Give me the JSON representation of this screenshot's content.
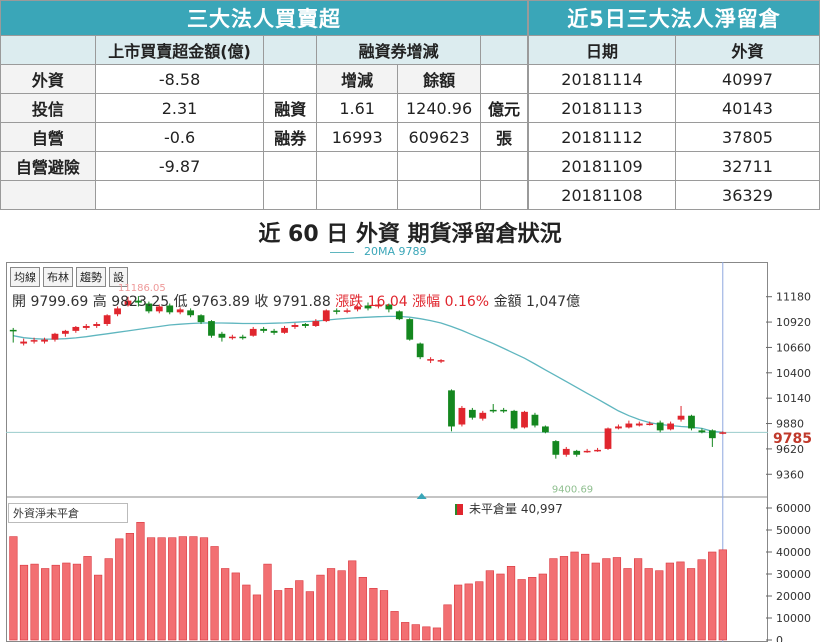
{
  "table1": {
    "title": "三大法人買賣超",
    "head": {
      "col1": "上市買賣超金額(億)",
      "col2": "融資券增減"
    },
    "subhead": {
      "a": "增減",
      "b": "餘額"
    },
    "rows": [
      {
        "label": "外資",
        "value": "-8.58",
        "m": "",
        "a": "",
        "b": "",
        "u": ""
      },
      {
        "label": "投信",
        "value": "2.31",
        "m": "融資",
        "a": "1.61",
        "b": "1240.96",
        "u": "億元"
      },
      {
        "label": "自營",
        "value": "-0.6",
        "m": "融券",
        "a": "16993",
        "b": "609623",
        "u": "張"
      },
      {
        "label": "自營避險",
        "value": "-9.87",
        "m": "",
        "a": "",
        "b": "",
        "u": ""
      }
    ]
  },
  "table2": {
    "title": "近5日三大法人淨留倉",
    "head": {
      "date": "日期",
      "foreign": "外資"
    },
    "rows": [
      {
        "date": "20181114",
        "value": "40997"
      },
      {
        "date": "20181113",
        "value": "40143"
      },
      {
        "date": "20181112",
        "value": "37805"
      },
      {
        "date": "20181109",
        "value": "32711"
      },
      {
        "date": "20181108",
        "value": "36329"
      }
    ]
  },
  "chart_title": "近 60 日 外資 期貨淨留倉狀況",
  "ma_legend": "20MA 9789",
  "buttons": [
    "均線",
    "布林",
    "趨勢",
    "設"
  ],
  "ohlc": {
    "open": "開 9799.69",
    "high": "高 9823.25",
    "low": "低 9763.89",
    "close": "收 9791.88",
    "change": "漲跌 16.04",
    "pct": "漲幅 0.16%",
    "amount": "金額 1,047億"
  },
  "price_tag": "9785",
  "colors": {
    "up": "#e0262e",
    "down": "#14871f",
    "ma": "#5fb6bf",
    "header": "#3aa6b8"
  },
  "chart_data": [
    {
      "type": "candlestick",
      "title": "",
      "y_ticks": [
        "11180",
        "10920",
        "10660",
        "10400",
        "10140",
        "9880",
        "9620",
        "9360"
      ],
      "ylim": [
        9250,
        11300
      ],
      "annotations": {
        "high_marker": "11186.05",
        "low_marker": "9400.69"
      },
      "candles": [
        [
          10840,
          10830,
          10860,
          10710
        ],
        [
          10700,
          10720,
          10750,
          10680
        ],
        [
          10730,
          10735,
          10760,
          10700
        ],
        [
          10720,
          10740,
          10760,
          10700
        ],
        [
          10740,
          10800,
          10810,
          10720
        ],
        [
          10800,
          10830,
          10840,
          10770
        ],
        [
          10830,
          10870,
          10880,
          10810
        ],
        [
          10860,
          10880,
          10900,
          10840
        ],
        [
          10880,
          10900,
          10920,
          10860
        ],
        [
          10900,
          10990,
          11000,
          10880
        ],
        [
          11000,
          11060,
          11080,
          10980
        ],
        [
          11090,
          11140,
          11180,
          11080
        ],
        [
          11140,
          11120,
          11186,
          11080
        ],
        [
          11110,
          11030,
          11130,
          11010
        ],
        [
          11030,
          11080,
          11100,
          11010
        ],
        [
          11090,
          11020,
          11110,
          11000
        ],
        [
          11020,
          11050,
          11070,
          11000
        ],
        [
          11040,
          10990,
          11060,
          10970
        ],
        [
          10990,
          10920,
          11000,
          10900
        ],
        [
          10930,
          10780,
          10940,
          10760
        ],
        [
          10800,
          10760,
          10820,
          10720
        ],
        [
          10760,
          10770,
          10790,
          10740
        ],
        [
          10770,
          10760,
          10790,
          10740
        ],
        [
          10780,
          10850,
          10870,
          10770
        ],
        [
          10850,
          10830,
          10870,
          10810
        ],
        [
          10830,
          10810,
          10850,
          10790
        ],
        [
          10810,
          10860,
          10880,
          10800
        ],
        [
          10870,
          10890,
          10910,
          10850
        ],
        [
          10900,
          10880,
          10910,
          10860
        ],
        [
          10880,
          10930,
          10950,
          10870
        ],
        [
          10930,
          11040,
          11050,
          10920
        ],
        [
          11040,
          11030,
          11060,
          11000
        ],
        [
          11030,
          11040,
          11060,
          11010
        ],
        [
          11050,
          11080,
          11090,
          11030
        ],
        [
          11090,
          11060,
          11120,
          11040
        ],
        [
          11080,
          11100,
          11120,
          11060
        ],
        [
          11100,
          11050,
          11110,
          11020
        ],
        [
          11030,
          10950,
          11040,
          10940
        ],
        [
          10950,
          10740,
          10960,
          10730
        ],
        [
          10700,
          10560,
          10710,
          10540
        ],
        [
          10530,
          10540,
          10560,
          10500
        ],
        [
          10520,
          10530,
          10540,
          10500
        ],
        [
          10220,
          9850,
          10230,
          9800
        ],
        [
          9870,
          10040,
          10060,
          9850
        ],
        [
          10020,
          9940,
          10040,
          9920
        ],
        [
          9930,
          9990,
          10010,
          9910
        ],
        [
          10020,
          10010,
          10080,
          9990
        ],
        [
          10020,
          10010,
          10040,
          9990
        ],
        [
          10010,
          9830,
          10020,
          9820
        ],
        [
          9840,
          10000,
          10010,
          9830
        ],
        [
          9970,
          9860,
          9990,
          9840
        ],
        [
          9850,
          9790,
          9860,
          9780
        ],
        [
          9700,
          9560,
          9710,
          9520
        ],
        [
          9560,
          9620,
          9640,
          9540
        ],
        [
          9600,
          9560,
          9610,
          9540
        ],
        [
          9590,
          9600,
          9620,
          9580
        ],
        [
          9600,
          9610,
          9630,
          9590
        ],
        [
          9620,
          9830,
          9840,
          9610
        ],
        [
          9830,
          9850,
          9870,
          9820
        ],
        [
          9840,
          9880,
          9910,
          9830
        ],
        [
          9860,
          9880,
          9900,
          9850
        ],
        [
          9880,
          9880,
          9900,
          9860
        ],
        [
          9890,
          9810,
          9910,
          9790
        ],
        [
          9820,
          9880,
          9900,
          9810
        ],
        [
          9920,
          9960,
          10060,
          9900
        ],
        [
          9960,
          9830,
          9970,
          9810
        ],
        [
          9810,
          9790,
          9830,
          9780
        ],
        [
          9810,
          9730,
          9820,
          9640
        ],
        [
          9780,
          9790,
          9800,
          9770
        ]
      ],
      "ma20": [
        10780,
        10760,
        10750,
        10745,
        10745,
        10750,
        10758,
        10770,
        10785,
        10800,
        10815,
        10830,
        10845,
        10860,
        10875,
        10890,
        10898,
        10905,
        10910,
        10910,
        10910,
        10908,
        10905,
        10905,
        10905,
        10908,
        10912,
        10918,
        10925,
        10930,
        10940,
        10950,
        10958,
        10965,
        10970,
        10975,
        10978,
        10978,
        10970,
        10955,
        10935,
        10910,
        10875,
        10835,
        10790,
        10745,
        10700,
        10650,
        10600,
        10550,
        10490,
        10430,
        10370,
        10310,
        10250,
        10190,
        10130,
        10070,
        10010,
        9960,
        9920,
        9890,
        9870,
        9860,
        9850,
        9842,
        9830,
        9800,
        9790
      ]
    },
    {
      "type": "bar",
      "title": "外資淨未平倉",
      "series": [
        {
          "name": "未平倉量",
          "values": [
            47000,
            34000,
            34500,
            32500,
            34000,
            35000,
            34500,
            38000,
            29500,
            37000,
            46000,
            48500,
            53500,
            46500,
            46500,
            46500,
            47000,
            47000,
            46500,
            42500,
            32500,
            30500,
            25000,
            20500,
            34500,
            22500,
            23500,
            27000,
            22000,
            29500,
            32500,
            31500,
            36000,
            28500,
            23500,
            22500,
            13000,
            8000,
            7000,
            6000,
            5500,
            16000,
            25000,
            25500,
            26500,
            31500,
            30000,
            33500,
            27500,
            28500,
            30000,
            37000,
            38000,
            40000,
            39000,
            35000,
            37000,
            37500,
            32500,
            37000,
            32500,
            31500,
            35000,
            35500,
            32500,
            36500,
            40000,
            41000
          ]
        }
      ],
      "y_ticks": [
        "60000",
        "50000",
        "40000",
        "30000",
        "20000",
        "10000",
        "0"
      ],
      "ylim": [
        0,
        60000
      ],
      "legend_text": "未平倉量 40,997"
    }
  ]
}
